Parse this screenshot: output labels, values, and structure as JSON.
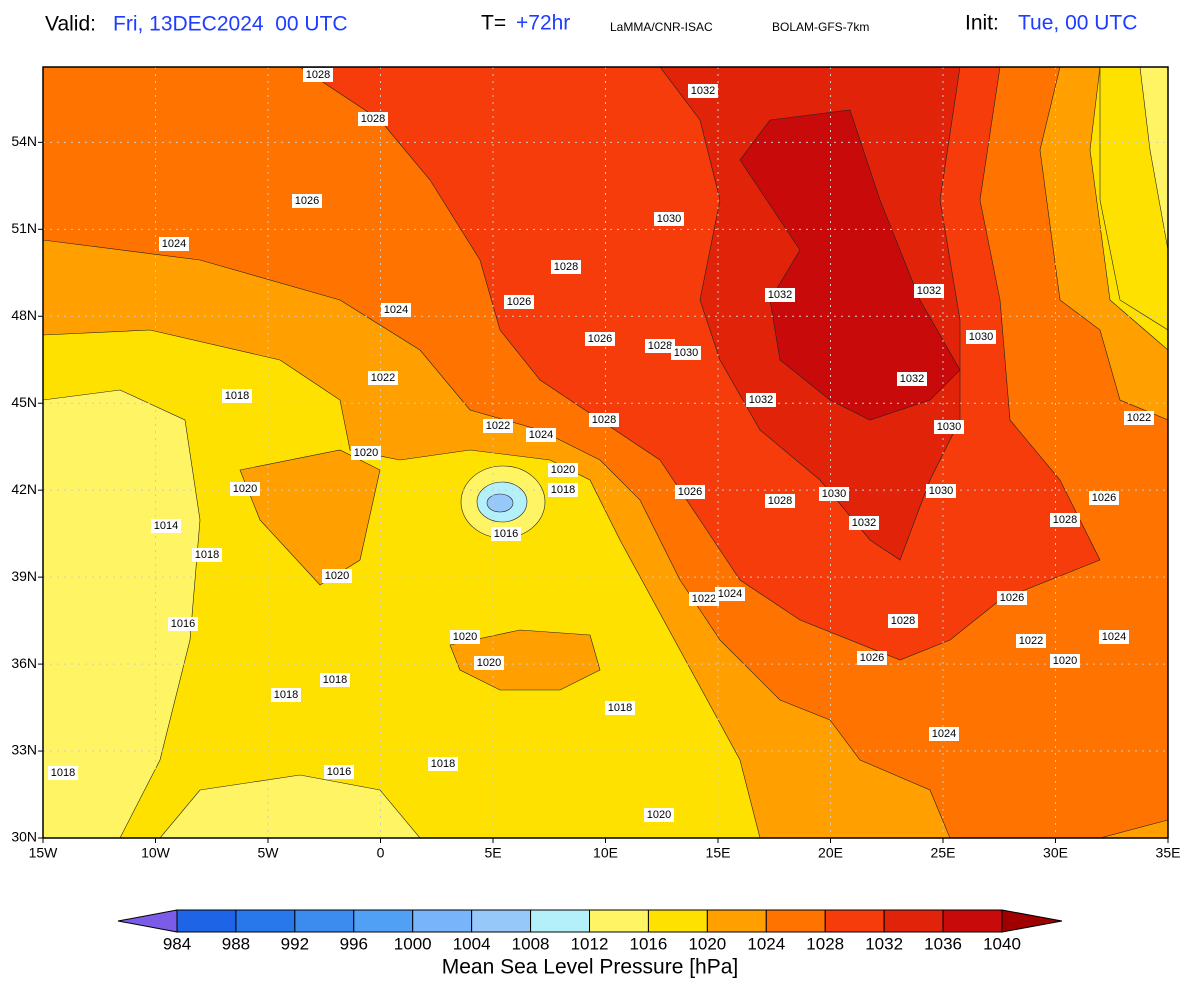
{
  "header": {
    "valid_label": "Valid:",
    "valid_value": "Fri, 13DEC2024  00 UTC",
    "lead_label": "T=",
    "lead_value": "+72hr",
    "source": "LaMMA/CNR-ISAC",
    "model": "BOLAM-GFS-7km",
    "init_label": "Init:",
    "init_value": "Tue, 00 UTC"
  },
  "map": {
    "xlim": [
      -15,
      35
    ],
    "ylim": [
      30,
      56.6
    ],
    "grid": true,
    "xticks": [
      {
        "value": -15,
        "label": "15W"
      },
      {
        "value": -10,
        "label": "10W"
      },
      {
        "value": -5,
        "label": "5W"
      },
      0,
      {
        "value": 5,
        "label": "5E"
      },
      {
        "value": 10,
        "label": "10E"
      },
      {
        "value": 15,
        "label": "15E"
      },
      {
        "value": 20,
        "label": "20E"
      },
      {
        "value": 25,
        "label": "25E"
      },
      {
        "value": 30,
        "label": "30E"
      },
      {
        "value": 35,
        "label": "35E"
      }
    ],
    "yticks": [
      {
        "value": 30,
        "label": "30N"
      },
      {
        "value": 33,
        "label": "33N"
      },
      {
        "value": 36,
        "label": "36N"
      },
      {
        "value": 39,
        "label": "39N"
      },
      {
        "value": 42,
        "label": "42N"
      },
      {
        "value": 45,
        "label": "45N"
      },
      {
        "value": 48,
        "label": "48N"
      },
      {
        "value": 51,
        "label": "51N"
      },
      {
        "value": 54,
        "label": "54N"
      }
    ],
    "isobar_labels": [
      1028,
      1032,
      1028,
      1026,
      1030,
      1024,
      1028,
      1032,
      1032,
      1026,
      1024,
      1030,
      1026,
      1028,
      1030,
      1022,
      1032,
      1018,
      1032,
      1022,
      1024,
      1028,
      1030,
      1022,
      1020,
      1020,
      1018,
      1020,
      1026,
      1028,
      1030,
      1030,
      1026,
      1014,
      1032,
      1028,
      1016,
      1018,
      1020,
      1022,
      1024,
      1026,
      1016,
      1028,
      1020,
      1022,
      1024,
      1020,
      1026,
      1020,
      1018,
      1018,
      1018,
      1024,
      1018,
      1016,
      1018,
      1020
    ]
  },
  "colorbar": {
    "title": "Mean Sea Level Pressure [hPa]",
    "levels": [
      984,
      988,
      992,
      996,
      1000,
      1004,
      1008,
      1012,
      1016,
      1020,
      1024,
      1028,
      1032,
      1036,
      1040
    ],
    "colors": [
      "#7b5ce6",
      "#1e64e6",
      "#2878eb",
      "#3c8cf0",
      "#50a0f5",
      "#78b4fa",
      "#96c8fa",
      "#b4f0fa",
      "#fff564",
      "#ffe100",
      "#ffa000",
      "#ff7300",
      "#f53c0a",
      "#e1230a",
      "#c80a0a",
      "#a00000"
    ]
  }
}
